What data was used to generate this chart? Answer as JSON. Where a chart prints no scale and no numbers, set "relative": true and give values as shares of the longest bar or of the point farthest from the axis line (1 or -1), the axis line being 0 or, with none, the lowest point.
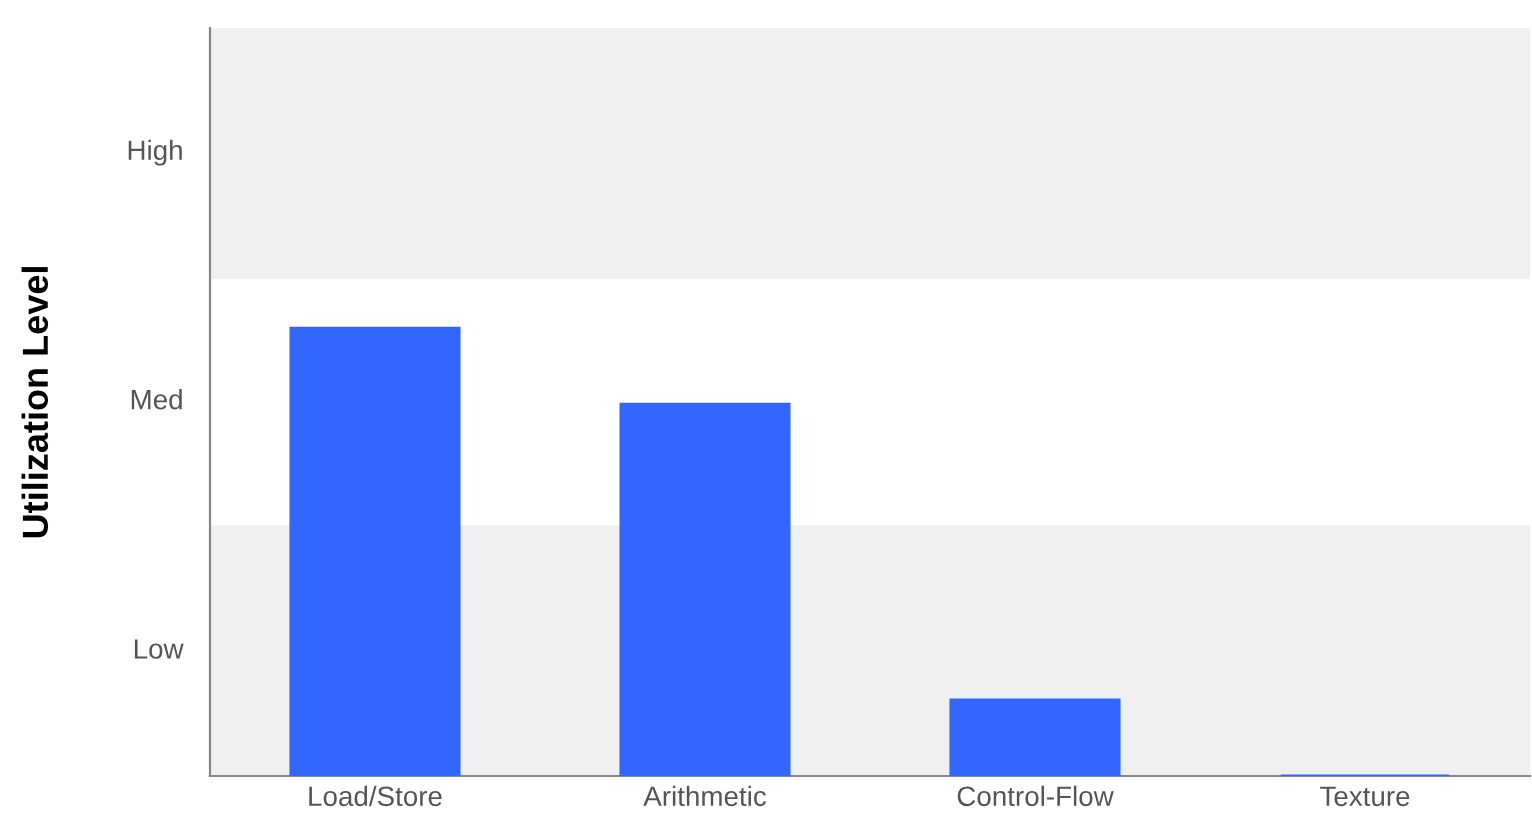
{
  "chart_data": {
    "type": "bar",
    "ylabel": "Utilization Level",
    "relative": true,
    "categories": [
      "Load/Store",
      "Arithmetic",
      "Control-Flow",
      "Texture"
    ],
    "values": [
      1,
      0.83,
      0.17,
      0
    ],
    "color": "#3366ff",
    "bands": [
      {
        "axis": "y",
        "from": 0,
        "to": 0.56,
        "color": "#f0f0f0"
      },
      {
        "axis": "y",
        "from": 1.11,
        "to": 1.67,
        "color": "#f0f0f0"
      }
    ],
    "annotations": [
      "Low",
      "Med",
      "High"
    ],
    "grid": false,
    "legend": false
  }
}
